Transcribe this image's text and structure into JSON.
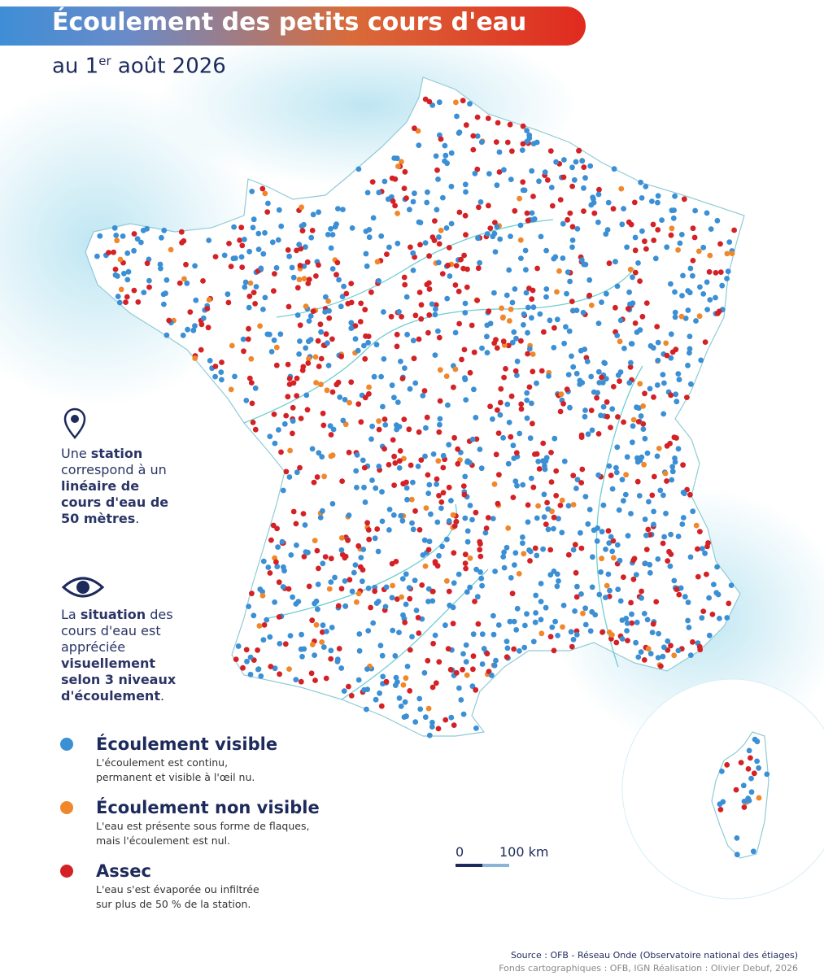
{
  "header": {
    "title": "Écoulement des petits cours d'eau",
    "subtitle": {
      "before": "au 1",
      "sup": "er",
      "after": " août 2026"
    }
  },
  "info": [
    {
      "parts": [
        {
          "text": "Une ",
          "bold": false
        },
        {
          "text": "station",
          "bold": true
        },
        {
          "text": " correspond à un ",
          "bold": false
        },
        {
          "text": "linéaire de cours d'eau de 50 mètres",
          "bold": true
        },
        {
          "text": ".",
          "bold": false
        }
      ]
    },
    {
      "parts": [
        {
          "text": "La ",
          "bold": false
        },
        {
          "text": "situation",
          "bold": true
        },
        {
          "text": " des cours d'eau est appréciée ",
          "bold": false
        },
        {
          "text": "visuellement selon 3 niveaux d'écoulement",
          "bold": true
        },
        {
          "text": ".",
          "bold": false
        }
      ]
    }
  ],
  "legend": [
    {
      "name": "Écoulement visible",
      "color": "#3b8fd4",
      "description": [
        "L'écoulement est continu,",
        "permanent et visible à l'œil nu."
      ]
    },
    {
      "name": "Écoulement non visible",
      "color": "#f0872a",
      "description": [
        "L'eau est présente sous forme de flaques,",
        "mais l'écoulement est nul."
      ]
    },
    {
      "name": "Assec",
      "color": "#d42126",
      "description": [
        "L'eau s'est évaporée ou infiltrée",
        "sur plus de 50 % de la station."
      ]
    }
  ],
  "scale": {
    "start": "0",
    "end": "100 km"
  },
  "source": [
    "Source : OFB - Réseau Onde (Observatoire national des étiages)",
    "Fonds cartographiques : OFB, IGN Réalisation : Olivier Debuf, 2026"
  ]
}
